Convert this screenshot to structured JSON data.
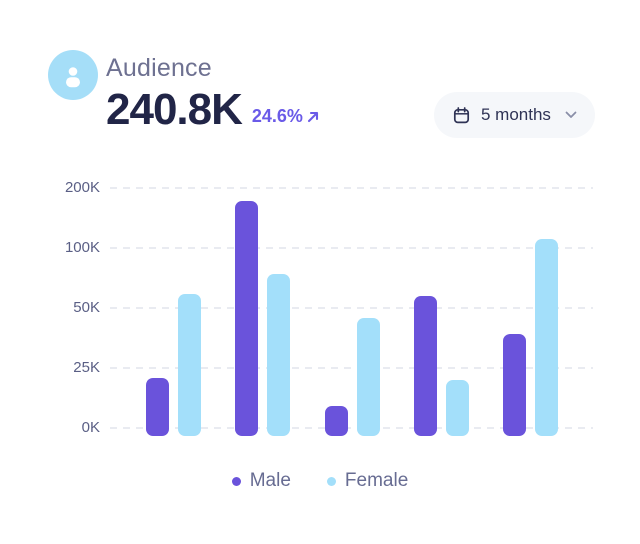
{
  "header": {
    "title": "Audience",
    "value": "240.8K",
    "change": "24.6%",
    "change_direction": "up",
    "period_selector": {
      "label": "5 months"
    }
  },
  "colors": {
    "male": "#6A53DB",
    "female": "#A3DFFA",
    "accent_purple": "#6A5AE8",
    "value_navy": "#212547",
    "title_slate": "#6E7191",
    "axis_label": "#5A5F85",
    "gridline": "#E9EBF1",
    "pill_bg": "#F5F7FA",
    "pill_text": "#2F3355",
    "avatar_bg": "#A5DEF8",
    "legend_text": "#676C92"
  },
  "chart_data": {
    "type": "bar",
    "title": "Audience by gender",
    "groups": 5,
    "x_tick_labels": [],
    "series": [
      {
        "name": "Male",
        "color": "#6A53DB",
        "values": [
          21000,
          178000,
          9000,
          60000,
          39000
        ]
      },
      {
        "name": "Female",
        "color": "#A3DFFA",
        "values": [
          62000,
          78000,
          46000,
          20000,
          115000
        ]
      }
    ],
    "y_ticks": [
      {
        "label": "200K",
        "value": 200000
      },
      {
        "label": "100K",
        "value": 100000
      },
      {
        "label": "50K",
        "value": 50000
      },
      {
        "label": "25K",
        "value": 25000
      },
      {
        "label": "0K",
        "value": 0
      }
    ],
    "y_scale": "piecewise-linear-even-ticks",
    "grid": "horizontal-dashed",
    "legend": [
      "Male",
      "Female"
    ],
    "legend_position": "bottom-center"
  }
}
